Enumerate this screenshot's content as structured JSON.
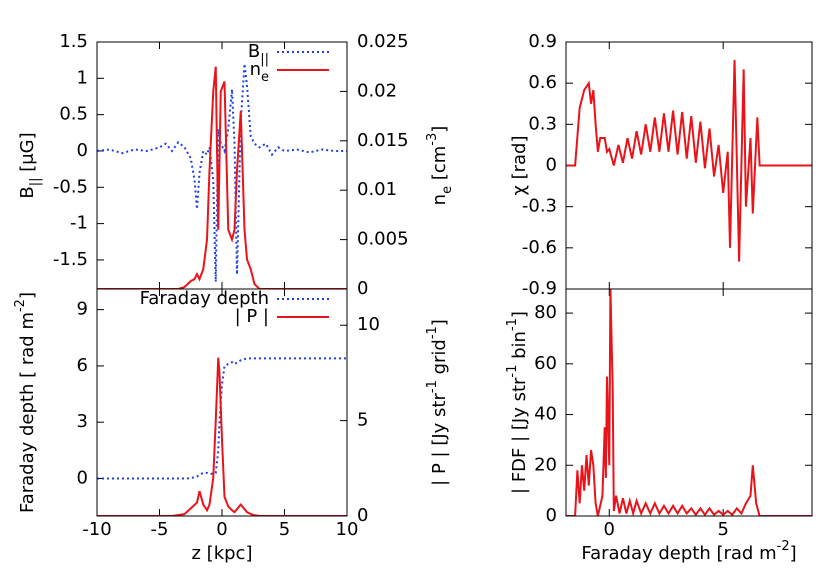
{
  "chart_data": [
    {
      "type": "line",
      "x": [
        -10,
        -9,
        -8,
        -7,
        -6,
        -5,
        -4.5,
        -4,
        -3.5,
        -3,
        -2.5,
        -2.2,
        -2,
        -1.8,
        -1.5,
        -1.2,
        -1,
        -0.7,
        -0.5,
        -0.3,
        -0.1,
        0.2,
        0.5,
        0.8,
        1,
        1.2,
        1.5,
        1.8,
        2,
        2.3,
        2.6,
        3,
        3.5,
        4,
        4.5,
        5,
        6,
        7,
        8,
        9,
        10
      ],
      "series": [
        {
          "name": [
            {
              "text": "B"
            },
            {
              "text": "||",
              "sub": true
            }
          ],
          "color": "#1f3fe0",
          "dash": true,
          "values": [
            0,
            0.02,
            -0.03,
            0.02,
            0,
            0.05,
            0.1,
            0,
            0.12,
            0.05,
            -0.1,
            -0.4,
            -0.8,
            -0.3,
            0,
            -0.05,
            0.05,
            -0.4,
            -1.8,
            0.3,
            0.1,
            0,
            0.3,
            0.85,
            0.1,
            -1.7,
            0.4,
            1.2,
            0.9,
            0.2,
            0.1,
            0.05,
            0.1,
            -0.05,
            0.05,
            0,
            0.02,
            -0.02,
            0.02,
            0,
            0
          ]
        },
        {
          "name": [
            {
              "text": "n"
            },
            {
              "text": "e",
              "sub": true
            }
          ],
          "color": "#e8141a",
          "dash": false,
          "axis": "y2",
          "values": [
            0,
            0,
            0,
            0,
            0,
            0,
            0,
            0,
            0,
            0.0002,
            0.0008,
            0.001,
            0.0015,
            0.001,
            0.002,
            0.005,
            0.012,
            0.02,
            0.0225,
            0.006,
            0.02,
            0.021,
            0.006,
            0.005,
            0.006,
            0.012,
            0.018,
            0.006,
            0.003,
            0.002,
            0.0005,
            0,
            0,
            0,
            0,
            0,
            0,
            0,
            0,
            0,
            0
          ]
        }
      ],
      "xlim": [
        -10,
        10
      ],
      "xticks": [
        -10,
        -5,
        0,
        5,
        10
      ],
      "xtick_labels": false,
      "ylim": [
        -1.9,
        1.5
      ],
      "yticks": [
        1.5,
        1,
        0.5,
        0,
        -0.5,
        -1,
        -1.5
      ],
      "y2lim": [
        0,
        0.025
      ],
      "y2ticks": [
        0,
        0.005,
        0.01,
        0.015,
        0.02,
        0.025
      ],
      "ylabel": [
        {
          "text": "B"
        },
        {
          "text": "||",
          "sub": true
        },
        {
          "text": "  [μG]"
        }
      ],
      "y2label": [
        {
          "text": "n"
        },
        {
          "text": "e",
          "sub": true
        },
        {
          "text": "  [cm"
        },
        {
          "text": "-3",
          "sup": true
        },
        {
          "text": "]"
        }
      ],
      "legend": "top-right"
    },
    {
      "type": "line",
      "x": [
        -1.9,
        -1.5,
        -1.3,
        -1.1,
        -0.9,
        -0.8,
        -0.7,
        -0.6,
        -0.5,
        -0.4,
        -0.2,
        -0.1,
        0,
        0.2,
        0.4,
        0.6,
        0.8,
        1,
        1.2,
        1.4,
        1.6,
        1.8,
        2,
        2.2,
        2.4,
        2.6,
        2.8,
        3,
        3.2,
        3.4,
        3.6,
        3.8,
        4,
        4.2,
        4.4,
        4.6,
        4.8,
        5,
        5.2,
        5.3,
        5.5,
        5.7,
        5.9,
        6,
        6.2,
        6.3,
        6.5,
        6.6,
        8.9
      ],
      "series": [
        {
          "name": "χ",
          "color": "#e8141a",
          "dash": false,
          "values": [
            0,
            0,
            0.42,
            0.55,
            0.6,
            0.45,
            0.55,
            0.3,
            0.1,
            0.2,
            0.2,
            0.1,
            0.12,
            0,
            0.15,
            0.02,
            0.2,
            0.05,
            0.25,
            0.08,
            0.3,
            0.1,
            0.35,
            0.1,
            0.38,
            0.1,
            0.4,
            0.08,
            0.39,
            0.05,
            0.36,
            0.02,
            0.32,
            -0.02,
            0.27,
            -0.08,
            0.15,
            -0.2,
            0.1,
            -0.6,
            0.77,
            -0.7,
            0.7,
            -0.3,
            0.2,
            -0.35,
            0.35,
            0,
            0
          ]
        }
      ],
      "xlim": [
        -1.9,
        8.9
      ],
      "xticks": [
        0,
        5
      ],
      "xtick_labels": false,
      "ylim": [
        -0.9,
        0.9
      ],
      "yticks": [
        0.9,
        0.6,
        0.3,
        0,
        -0.3,
        -0.6,
        -0.9
      ],
      "ylabel": [
        {
          "text": "χ  [rad]"
        }
      ]
    },
    {
      "type": "line",
      "x": [
        -10,
        -8,
        -6,
        -4,
        -3,
        -2.5,
        -2,
        -1.8,
        -1.5,
        -1.2,
        -1,
        -0.7,
        -0.5,
        -0.3,
        -0.2,
        0,
        0.2,
        0.5,
        0.8,
        1,
        1.5,
        2,
        2.5,
        3,
        4,
        6,
        8,
        10
      ],
      "series": [
        {
          "name": "Faraday depth",
          "color": "#1f3fe0",
          "dash": true,
          "values": [
            0,
            0,
            0,
            0,
            0,
            0.02,
            0.1,
            0.2,
            0.3,
            0.3,
            0.25,
            0.25,
            0.3,
            1.5,
            3,
            5,
            6,
            6.1,
            6.2,
            6.1,
            6.3,
            6.4,
            6.4,
            6.4,
            6.4,
            6.4,
            6.4,
            6.4
          ]
        },
        {
          "name": "| P |",
          "color": "#e8141a",
          "dash": false,
          "axis": "y2",
          "values": [
            0,
            0,
            0,
            0,
            0.1,
            0.4,
            0.7,
            1.3,
            0.6,
            0.3,
            0.6,
            2,
            5,
            8.3,
            7.5,
            4,
            1,
            0.5,
            0.3,
            0.2,
            0.6,
            0.2,
            0.05,
            0,
            0,
            0,
            0,
            0
          ]
        }
      ],
      "xlim": [
        -10,
        10
      ],
      "xticks": [
        -10,
        -5,
        0,
        5,
        10
      ],
      "xtick_labels": true,
      "ylim": [
        -2,
        10.1
      ],
      "yticks": [
        9,
        6,
        3,
        0
      ],
      "y2lim": [
        0,
        11.9
      ],
      "y2ticks": [
        0,
        5,
        10
      ],
      "xlabel": [
        {
          "text": "z [kpc]"
        }
      ],
      "ylabel": [
        {
          "text": "Faraday depth [ rad m"
        },
        {
          "text": "-2",
          "sup": true
        },
        {
          "text": "]"
        }
      ],
      "y2label": [
        {
          "text": "| P |   [Jy str"
        },
        {
          "text": "-1",
          "sup": true
        },
        {
          "text": " grid"
        },
        {
          "text": "-1",
          "sup": true
        },
        {
          "text": "]"
        }
      ],
      "legend": "top-right"
    },
    {
      "type": "line",
      "x": [
        -1.9,
        -1.5,
        -1.4,
        -1.3,
        -1.2,
        -1.1,
        -1,
        -0.9,
        -0.8,
        -0.7,
        -0.6,
        -0.5,
        -0.3,
        -0.2,
        -0.15,
        -0.1,
        0,
        0.05,
        0.15,
        0.2,
        0.3,
        0.45,
        0.6,
        0.75,
        0.9,
        1.05,
        1.2,
        1.4,
        1.6,
        1.8,
        2,
        2.2,
        2.4,
        2.6,
        2.8,
        3,
        3.2,
        3.4,
        3.6,
        3.8,
        4,
        4.2,
        4.4,
        4.6,
        4.8,
        5,
        5.2,
        5.4,
        5.6,
        5.8,
        6,
        6.2,
        6.3,
        6.45,
        6.6,
        8.9
      ],
      "series": [
        {
          "name": "| FDF |",
          "color": "#e8141a",
          "dash": false,
          "values": [
            0,
            0,
            18,
            5,
            20,
            10,
            24,
            12,
            26,
            20,
            5,
            0,
            8,
            35,
            15,
            55,
            20,
            90,
            50,
            2,
            8,
            1,
            7,
            1,
            6,
            1,
            6,
            1,
            5,
            1,
            5,
            1,
            4,
            1,
            4,
            1,
            4,
            1,
            3,
            0.5,
            3,
            0.5,
            3,
            0.5,
            2,
            0.5,
            2,
            0.5,
            3,
            1,
            5,
            8,
            20,
            5,
            0,
            0
          ]
        }
      ],
      "xlim": [
        -1.9,
        8.9
      ],
      "xticks": [
        0,
        5
      ],
      "xtick_labels": true,
      "ylim": [
        0,
        89.5
      ],
      "yticks": [
        80,
        60,
        40,
        20,
        0
      ],
      "xlabel": [
        {
          "text": "Faraday depth  [rad m"
        },
        {
          "text": "-2",
          "sup": true
        },
        {
          "text": "]"
        }
      ],
      "ylabel": [
        {
          "text": "| FDF |  [Jy str"
        },
        {
          "text": "-1",
          "sup": true
        },
        {
          "text": " bin"
        },
        {
          "text": "-1",
          "sup": true
        },
        {
          "text": "]"
        }
      ]
    }
  ]
}
